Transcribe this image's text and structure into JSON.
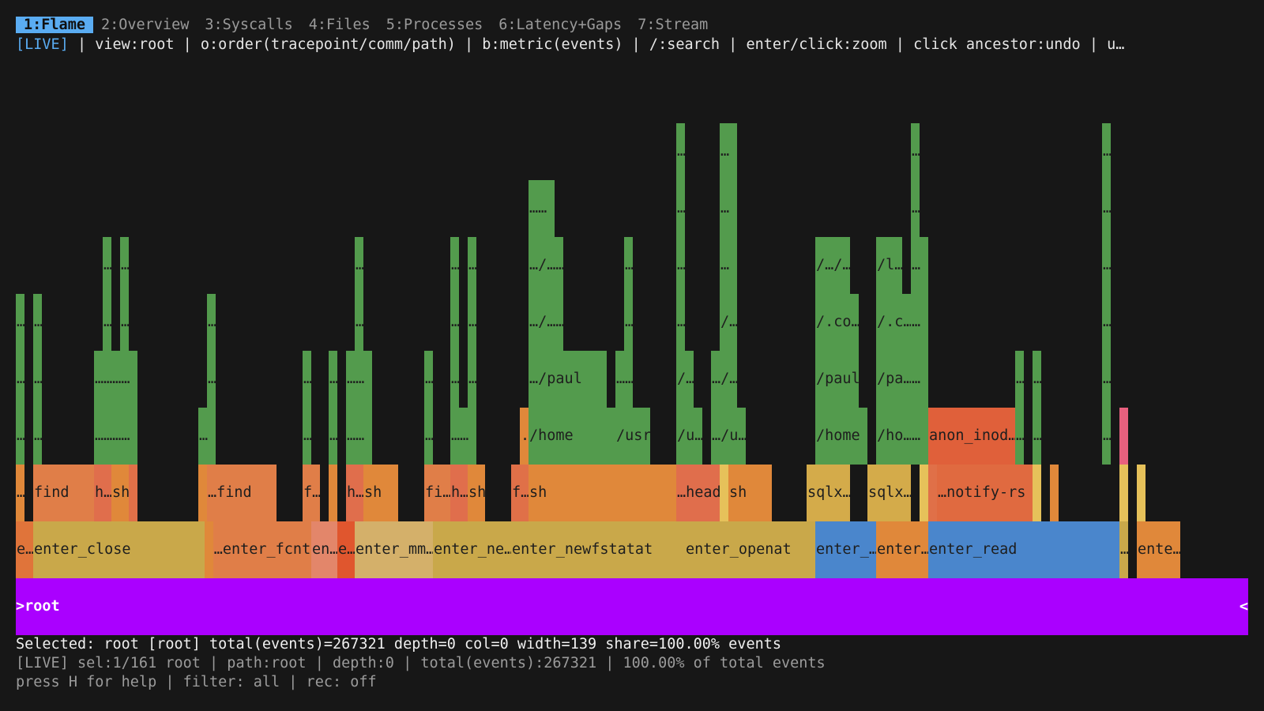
{
  "tabs": [
    {
      "label": "1:Flame",
      "active": true
    },
    {
      "label": "2:Overview"
    },
    {
      "label": "3:Syscalls"
    },
    {
      "label": "4:Files"
    },
    {
      "label": "5:Processes"
    },
    {
      "label": "6:Latency+Gaps"
    },
    {
      "label": "7:Stream"
    }
  ],
  "hint": {
    "live": "[LIVE]",
    "text": " | view:root | o:order(tracepoint/comm/path) | b:metric(events) | /:search | enter/click:zoom | click ancestor:undo | u…"
  },
  "root_frame": {
    "label": ">root",
    "caret": "<"
  },
  "status": {
    "selected": "Selected: root [root] total(events)=267321 depth=0 col=0 width=139 share=100.00% events",
    "live": "[LIVE] sel:1/161 root | path:root | depth:0 | total(events):267321 | 100.00% of total events",
    "help": "press H for help | filter: all | rec: off"
  },
  "colors": {
    "background": "#171717",
    "tab_active": "#5aacf2",
    "root": "#aa00ff",
    "syscall_yellow": "#c9a84a",
    "syscall_blue": "#4a86cc",
    "comm_orange": "#e0883a",
    "path_green": "#539b4d"
  },
  "frames": [
    {
      "level": 1,
      "start": 0,
      "width": 2,
      "label": "e…",
      "color": "#e0743a"
    },
    {
      "level": 1,
      "start": 2,
      "width": 19.7,
      "label": "enter_close",
      "color": "#c9a84a"
    },
    {
      "level": 1,
      "start": 21.7,
      "width": 1,
      "label": "",
      "color": "#e0883a"
    },
    {
      "level": 1,
      "start": 22.7,
      "width": 11.3,
      "label": "…enter_fcntl",
      "color": "#e07e48"
    },
    {
      "level": 1,
      "start": 34,
      "width": 3,
      "label": "en…",
      "color": "#e3866a"
    },
    {
      "level": 1,
      "start": 37,
      "width": 2,
      "label": "e…",
      "color": "#e0562e"
    },
    {
      "level": 1,
      "start": 39,
      "width": 9,
      "label": "enter_mm…",
      "color": "#d4b06a"
    },
    {
      "level": 1,
      "start": 48,
      "width": 9,
      "label": "enter_ne…",
      "color": "#c9a84a"
    },
    {
      "level": 1,
      "start": 57,
      "width": 20,
      "label": "enter_newfstatat",
      "color": "#c9a84a"
    },
    {
      "level": 1,
      "start": 77,
      "width": 15,
      "label": "enter_openat",
      "color": "#c9a84a"
    },
    {
      "level": 1,
      "start": 92,
      "width": 7,
      "label": "enter_…",
      "color": "#4a86cc"
    },
    {
      "level": 1,
      "start": 99,
      "width": 6,
      "label": "enter…",
      "color": "#e0883a"
    },
    {
      "level": 1,
      "start": 105,
      "width": 22,
      "label": "enter_read",
      "color": "#4a86cc"
    },
    {
      "level": 1,
      "start": 127,
      "width": 1,
      "label": "…",
      "color": "#c9a84a"
    },
    {
      "level": 1,
      "start": 129,
      "width": 5,
      "label": "ente…",
      "color": "#e0883a"
    },
    {
      "level": 2,
      "start": 0,
      "width": 1,
      "label": "…",
      "color": "#e0883a"
    },
    {
      "level": 2,
      "start": 2,
      "width": 7,
      "label": "find",
      "color": "#e07e48"
    },
    {
      "level": 2,
      "start": 9,
      "width": 2,
      "label": "h…",
      "color": "#e06e4c"
    },
    {
      "level": 2,
      "start": 11,
      "width": 2,
      "label": "sh…",
      "color": "#e0883a"
    },
    {
      "level": 2,
      "start": 13,
      "width": 1,
      "label": "",
      "color": "#e07048"
    },
    {
      "level": 2,
      "start": 21,
      "width": 1,
      "label": "",
      "color": "#e0883a"
    },
    {
      "level": 2,
      "start": 22,
      "width": 8,
      "label": "…find",
      "color": "#e07e48"
    },
    {
      "level": 2,
      "start": 33,
      "width": 2,
      "label": "f…",
      "color": "#e07e48"
    },
    {
      "level": 2,
      "start": 36,
      "width": 1,
      "label": "",
      "color": "#e0883a"
    },
    {
      "level": 2,
      "start": 38,
      "width": 2,
      "label": "h…",
      "color": "#e06e4c"
    },
    {
      "level": 2,
      "start": 40,
      "width": 4,
      "label": "sh",
      "color": "#e0883a"
    },
    {
      "level": 2,
      "start": 47,
      "width": 3,
      "label": "fi…",
      "color": "#e07e48"
    },
    {
      "level": 2,
      "start": 50,
      "width": 2,
      "label": "h…",
      "color": "#e06e4c"
    },
    {
      "level": 2,
      "start": 52,
      "width": 2,
      "label": "sh",
      "color": "#e0883a"
    },
    {
      "level": 2,
      "start": 57,
      "width": 2,
      "label": "f…",
      "color": "#e07048"
    },
    {
      "level": 2,
      "start": 59,
      "width": 17,
      "label": "sh",
      "color": "#e0883a"
    },
    {
      "level": 2,
      "start": 76,
      "width": 5,
      "label": "…head…",
      "color": "#e06e4c"
    },
    {
      "level": 2,
      "start": 81,
      "width": 1,
      "label": "",
      "color": "#e6c15a"
    },
    {
      "level": 2,
      "start": 82,
      "width": 5,
      "label": "sh",
      "color": "#e0883a"
    },
    {
      "level": 2,
      "start": 91,
      "width": 5,
      "label": "sqlx…",
      "color": "#d4ab4a"
    },
    {
      "level": 2,
      "start": 98,
      "width": 5,
      "label": "sqlx…",
      "color": "#d4ab4a"
    },
    {
      "level": 2,
      "start": 104,
      "width": 1,
      "label": "",
      "color": "#e6c15a"
    },
    {
      "level": 2,
      "start": 105,
      "width": 1,
      "label": "",
      "color": "#e07048"
    },
    {
      "level": 2,
      "start": 106,
      "width": 11,
      "label": "…notify-rs",
      "color": "#e06a40"
    },
    {
      "level": 2,
      "start": 117,
      "width": 1,
      "label": "",
      "color": "#e6c15a"
    },
    {
      "level": 2,
      "start": 119,
      "width": 1,
      "label": "",
      "color": "#e0883a"
    },
    {
      "level": 2,
      "start": 127,
      "width": 1,
      "label": "",
      "color": "#e6c15a"
    },
    {
      "level": 2,
      "start": 129,
      "width": 1,
      "label": "",
      "color": "#e6c15a"
    },
    {
      "level": 3,
      "start": 0,
      "width": 1,
      "label": "…",
      "color": "#539b4d"
    },
    {
      "level": 3,
      "start": 2,
      "width": 1,
      "label": "…",
      "color": "#539b4d"
    },
    {
      "level": 3,
      "start": 9,
      "width": 5,
      "label": "…………",
      "color": "#539b4d"
    },
    {
      "level": 3,
      "start": 21,
      "width": 2,
      "label": "…",
      "color": "#539b4d"
    },
    {
      "level": 3,
      "start": 33,
      "width": 1,
      "label": "…",
      "color": "#539b4d"
    },
    {
      "level": 3,
      "start": 36,
      "width": 1,
      "label": "…",
      "color": "#539b4d"
    },
    {
      "level": 3,
      "start": 38,
      "width": 3,
      "label": "……",
      "color": "#539b4d"
    },
    {
      "level": 3,
      "start": 47,
      "width": 1,
      "label": "…",
      "color": "#539b4d"
    },
    {
      "level": 3,
      "start": 50,
      "width": 3,
      "label": "……",
      "color": "#539b4d"
    },
    {
      "level": 3,
      "start": 58,
      "width": 1,
      "label": ".",
      "color": "#e0883a"
    },
    {
      "level": 3,
      "start": 59,
      "width": 10,
      "label": "/home",
      "color": "#539b4d"
    },
    {
      "level": 3,
      "start": 69,
      "width": 4,
      "label": "/usr",
      "color": "#539b4d"
    },
    {
      "level": 3,
      "start": 76,
      "width": 3,
      "label": "/u…",
      "color": "#539b4d"
    },
    {
      "level": 3,
      "start": 80,
      "width": 4,
      "label": "…/u…",
      "color": "#539b4d"
    },
    {
      "level": 3,
      "start": 92,
      "width": 6,
      "label": "/home",
      "color": "#539b4d"
    },
    {
      "level": 3,
      "start": 99,
      "width": 4,
      "label": "/ho…",
      "color": "#539b4d"
    },
    {
      "level": 3,
      "start": 103,
      "width": 2,
      "label": "…",
      "color": "#539b4d"
    },
    {
      "level": 3,
      "start": 105,
      "width": 10,
      "label": "anon_inod…",
      "color": "#e0603a"
    },
    {
      "level": 3,
      "start": 115,
      "width": 1,
      "label": "…",
      "color": "#539b4d"
    },
    {
      "level": 3,
      "start": 117,
      "width": 1,
      "label": "…",
      "color": "#539b4d"
    },
    {
      "level": 3,
      "start": 125,
      "width": 1,
      "label": "…",
      "color": "#539b4d"
    },
    {
      "level": 3,
      "start": 127,
      "width": 1,
      "label": "",
      "color": "#e8607e"
    },
    {
      "level": 4,
      "start": 0,
      "width": 1,
      "label": "…",
      "color": "#539b4d"
    },
    {
      "level": 4,
      "start": 2,
      "width": 1,
      "label": "…",
      "color": "#539b4d"
    },
    {
      "level": 4,
      "start": 9,
      "width": 5,
      "label": "…………",
      "color": "#539b4d"
    },
    {
      "level": 4,
      "start": 22,
      "width": 1,
      "label": "…",
      "color": "#539b4d"
    },
    {
      "level": 4,
      "start": 33,
      "width": 1,
      "label": "…",
      "color": "#539b4d"
    },
    {
      "level": 4,
      "start": 36,
      "width": 1,
      "label": "…",
      "color": "#539b4d"
    },
    {
      "level": 4,
      "start": 38,
      "width": 3,
      "label": "……",
      "color": "#539b4d"
    },
    {
      "level": 4,
      "start": 47,
      "width": 1,
      "label": "…",
      "color": "#539b4d"
    },
    {
      "level": 4,
      "start": 50,
      "width": 1,
      "label": "…",
      "color": "#539b4d"
    },
    {
      "level": 4,
      "start": 52,
      "width": 1,
      "label": "…",
      "color": "#539b4d"
    },
    {
      "level": 4,
      "start": 59,
      "width": 9,
      "label": "…/paul",
      "color": "#539b4d"
    },
    {
      "level": 4,
      "start": 69,
      "width": 2,
      "label": "……",
      "color": "#539b4d"
    },
    {
      "level": 4,
      "start": 76,
      "width": 2,
      "label": "/…",
      "color": "#539b4d"
    },
    {
      "level": 4,
      "start": 80,
      "width": 3,
      "label": "…/…",
      "color": "#539b4d"
    },
    {
      "level": 4,
      "start": 92,
      "width": 5,
      "label": "/paul",
      "color": "#539b4d"
    },
    {
      "level": 4,
      "start": 99,
      "width": 4,
      "label": "/pa…",
      "color": "#539b4d"
    },
    {
      "level": 4,
      "start": 103,
      "width": 2,
      "label": "…",
      "color": "#539b4d"
    },
    {
      "level": 4,
      "start": 115,
      "width": 1,
      "label": "…",
      "color": "#539b4d"
    },
    {
      "level": 4,
      "start": 117,
      "width": 1,
      "label": "…",
      "color": "#539b4d"
    },
    {
      "level": 4,
      "start": 125,
      "width": 1,
      "label": "…",
      "color": "#539b4d"
    },
    {
      "level": 5,
      "start": 0,
      "width": 1,
      "label": "…",
      "color": "#539b4d"
    },
    {
      "level": 5,
      "start": 2,
      "width": 1,
      "label": "…",
      "color": "#539b4d"
    },
    {
      "level": 5,
      "start": 10,
      "width": 1,
      "label": "…",
      "color": "#539b4d"
    },
    {
      "level": 5,
      "start": 12,
      "width": 1,
      "label": "…",
      "color": "#539b4d"
    },
    {
      "level": 5,
      "start": 22,
      "width": 1,
      "label": "…",
      "color": "#539b4d"
    },
    {
      "level": 5,
      "start": 39,
      "width": 1,
      "label": "…",
      "color": "#539b4d"
    },
    {
      "level": 5,
      "start": 50,
      "width": 1,
      "label": "…",
      "color": "#539b4d"
    },
    {
      "level": 5,
      "start": 52,
      "width": 1,
      "label": "…",
      "color": "#539b4d"
    },
    {
      "level": 5,
      "start": 59,
      "width": 4,
      "label": "…/……",
      "color": "#539b4d"
    },
    {
      "level": 5,
      "start": 70,
      "width": 1,
      "label": "…",
      "color": "#539b4d"
    },
    {
      "level": 5,
      "start": 76,
      "width": 1,
      "label": "…",
      "color": "#539b4d"
    },
    {
      "level": 5,
      "start": 81,
      "width": 2,
      "label": "/…",
      "color": "#539b4d"
    },
    {
      "level": 5,
      "start": 92,
      "width": 5,
      "label": "/.co…",
      "color": "#539b4d"
    },
    {
      "level": 5,
      "start": 99,
      "width": 4,
      "label": "/.c…",
      "color": "#539b4d"
    },
    {
      "level": 5,
      "start": 103,
      "width": 2,
      "label": "…",
      "color": "#539b4d"
    },
    {
      "level": 5,
      "start": 125,
      "width": 1,
      "label": "…",
      "color": "#539b4d"
    },
    {
      "level": 6,
      "start": 10,
      "width": 1,
      "label": "…",
      "color": "#539b4d"
    },
    {
      "level": 6,
      "start": 12,
      "width": 1,
      "label": "…",
      "color": "#539b4d"
    },
    {
      "level": 6,
      "start": 39,
      "width": 1,
      "label": "…",
      "color": "#539b4d"
    },
    {
      "level": 6,
      "start": 50,
      "width": 1,
      "label": "…",
      "color": "#539b4d"
    },
    {
      "level": 6,
      "start": 52,
      "width": 1,
      "label": "…",
      "color": "#539b4d"
    },
    {
      "level": 6,
      "start": 59,
      "width": 4,
      "label": "…/……",
      "color": "#539b4d"
    },
    {
      "level": 6,
      "start": 70,
      "width": 1,
      "label": "…",
      "color": "#539b4d"
    },
    {
      "level": 6,
      "start": 76,
      "width": 1,
      "label": "…",
      "color": "#539b4d"
    },
    {
      "level": 6,
      "start": 81,
      "width": 2,
      "label": "…",
      "color": "#539b4d"
    },
    {
      "level": 6,
      "start": 92,
      "width": 4,
      "label": "/…/…",
      "color": "#539b4d"
    },
    {
      "level": 6,
      "start": 99,
      "width": 3,
      "label": "/l…",
      "color": "#539b4d"
    },
    {
      "level": 6,
      "start": 103,
      "width": 2,
      "label": "…",
      "color": "#539b4d"
    },
    {
      "level": 6,
      "start": 125,
      "width": 1,
      "label": "…",
      "color": "#539b4d"
    },
    {
      "level": 7,
      "start": 59,
      "width": 3,
      "label": "……",
      "color": "#539b4d"
    },
    {
      "level": 7,
      "start": 76,
      "width": 1,
      "label": "…",
      "color": "#539b4d"
    },
    {
      "level": 7,
      "start": 81,
      "width": 2,
      "label": "…",
      "color": "#539b4d"
    },
    {
      "level": 7,
      "start": 103,
      "width": 1,
      "label": "…",
      "color": "#539b4d"
    },
    {
      "level": 7,
      "start": 125,
      "width": 1,
      "label": "…",
      "color": "#539b4d"
    },
    {
      "level": 8,
      "start": 76,
      "width": 1,
      "label": "…",
      "color": "#539b4d"
    },
    {
      "level": 8,
      "start": 81,
      "width": 2,
      "label": "…",
      "color": "#539b4d"
    },
    {
      "level": 8,
      "start": 103,
      "width": 1,
      "label": "…",
      "color": "#539b4d"
    },
    {
      "level": 8,
      "start": 125,
      "width": 1,
      "label": "…",
      "color": "#539b4d"
    }
  ]
}
